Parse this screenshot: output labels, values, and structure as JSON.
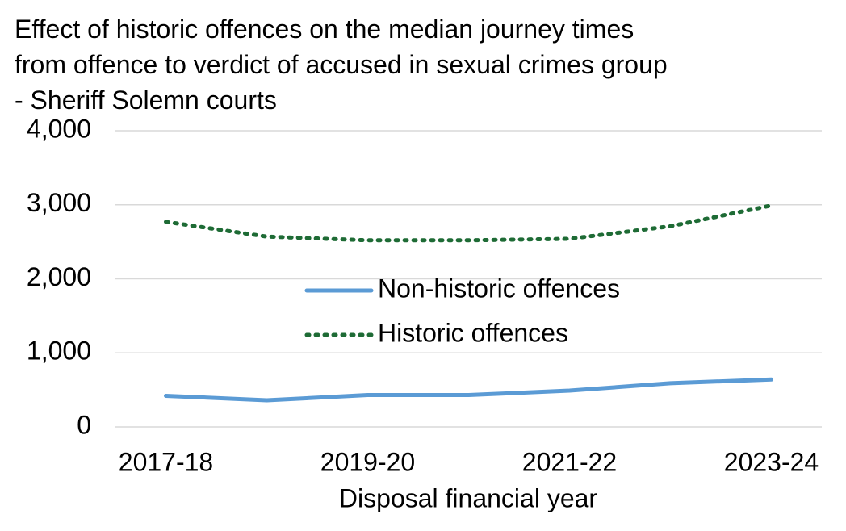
{
  "chart_data": {
    "type": "line",
    "title": "Effect of historic offences on the median journey times from offence to verdict of accused in sexual crimes group - Sheriff Solemn courts",
    "x_label": "Disposal financial year",
    "categories": [
      "2017-18",
      null,
      "2019-20",
      null,
      "2021-22",
      null,
      "2023-24"
    ],
    "series": [
      {
        "name": "Non-historic offences",
        "color": "#5b9bd5",
        "line_style": "solid",
        "values": [
          420,
          360,
          430,
          430,
          490,
          590,
          640
        ]
      },
      {
        "name": "Historic offences",
        "color": "#1e6b35",
        "line_style": "dotted",
        "values": [
          2770,
          2570,
          2520,
          2520,
          2540,
          2710,
          2990
        ]
      }
    ],
    "ylim": [
      0,
      4000
    ],
    "yticks": [
      0,
      {
        "value": 1000,
        "label": "1,000"
      },
      {
        "value": 2000,
        "label": "2,000"
      },
      {
        "value": 3000,
        "label": "3,000"
      },
      {
        "value": 4000,
        "label": "4,000"
      }
    ],
    "grid": true,
    "legend": "center"
  }
}
